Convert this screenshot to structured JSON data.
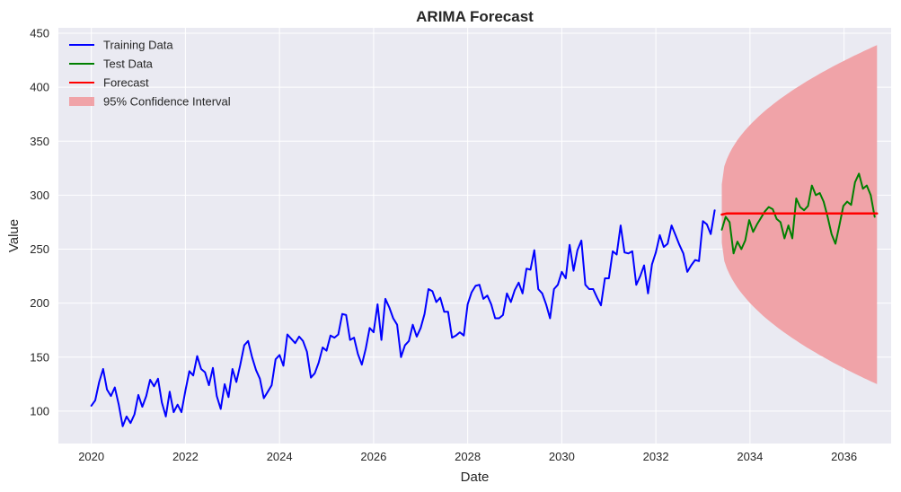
{
  "chart_data": {
    "type": "line",
    "title": "ARIMA Forecast",
    "xlabel": "Date",
    "ylabel": "Value",
    "xlim": [
      2019.3,
      2037.0
    ],
    "ylim": [
      70,
      455
    ],
    "x_ticks": [
      2020,
      2022,
      2024,
      2026,
      2028,
      2030,
      2032,
      2034,
      2036
    ],
    "x_tick_labels": [
      "2020",
      "2022",
      "2024",
      "2026",
      "2028",
      "2030",
      "2032",
      "2034",
      "2036"
    ],
    "y_ticks": [
      100,
      150,
      200,
      250,
      300,
      350,
      400,
      450
    ],
    "y_tick_labels": [
      "100",
      "150",
      "200",
      "250",
      "300",
      "350",
      "400",
      "450"
    ],
    "grid": true,
    "legend_position": "top-left",
    "legend": [
      {
        "key": "training",
        "label": "Training Data",
        "kind": "line",
        "color": "#0000ff"
      },
      {
        "key": "test",
        "label": "Test Data",
        "kind": "line",
        "color": "#008000"
      },
      {
        "key": "forecast",
        "label": "Forecast",
        "kind": "line",
        "color": "#ff0000"
      },
      {
        "key": "ci",
        "label": "95% Confidence Interval",
        "kind": "patch",
        "color": "#f0a3a8"
      }
    ],
    "series": [
      {
        "name": "Training Data",
        "key": "training",
        "color": "#0000ff",
        "x_start": 2020.0,
        "x_step": 0.0833333,
        "values": [
          105,
          110,
          127,
          139,
          120,
          114,
          122,
          106,
          86,
          95,
          89,
          97,
          115,
          104,
          114,
          129,
          123,
          130,
          108,
          95,
          118,
          99,
          106,
          99,
          119,
          137,
          133,
          151,
          139,
          136,
          124,
          140,
          114,
          102,
          125,
          113,
          139,
          127,
          143,
          161,
          165,
          150,
          138,
          130,
          112,
          118,
          124,
          148,
          152,
          142,
          171,
          167,
          163,
          169,
          165,
          155,
          131,
          135,
          145,
          159,
          156,
          170,
          168,
          171,
          190,
          189,
          166,
          168,
          153,
          143,
          158,
          177,
          173,
          199,
          166,
          204,
          196,
          186,
          180,
          150,
          161,
          165,
          180,
          169,
          177,
          190,
          213,
          211,
          201,
          205,
          192,
          192,
          168,
          170,
          173,
          170,
          199,
          210,
          216,
          217,
          204,
          207,
          199,
          186,
          186,
          189,
          209,
          201,
          212,
          219,
          209,
          232,
          231,
          249,
          213,
          209,
          199,
          186,
          213,
          217,
          229,
          223,
          254,
          230,
          249,
          258,
          217,
          213,
          213,
          205,
          198,
          223,
          223,
          248,
          245,
          272,
          247,
          246,
          248,
          217,
          225,
          235,
          209,
          236,
          247,
          263,
          252,
          255,
          272,
          263,
          254,
          246,
          229,
          235,
          240,
          239,
          276,
          273,
          264,
          286
        ]
      },
      {
        "name": "Test Data",
        "key": "test",
        "color": "#008000",
        "x_start": 2033.4,
        "x_step": 0.0833333,
        "values": [
          268,
          280,
          275,
          246,
          257,
          250,
          258,
          277,
          266,
          273,
          279,
          285,
          289,
          287,
          278,
          275,
          260,
          272,
          260,
          297,
          289,
          286,
          290,
          309,
          300,
          302,
          294,
          280,
          264,
          255,
          272,
          290,
          294,
          291,
          312,
          320,
          306,
          309,
          300,
          280
        ]
      },
      {
        "name": "Forecast",
        "key": "forecast",
        "color": "#ff0000",
        "x": [
          2033.4,
          2033.5,
          2036.7
        ],
        "values": [
          282,
          283,
          283
        ]
      }
    ],
    "confidence_interval": {
      "name": "95% Confidence Interval",
      "color": "#f0a3a8",
      "center": 283,
      "x_start": 2033.4,
      "x_end": 2036.7,
      "upper_start": 310,
      "upper_end": 439,
      "lower_start": 256,
      "lower_end": 125
    }
  }
}
